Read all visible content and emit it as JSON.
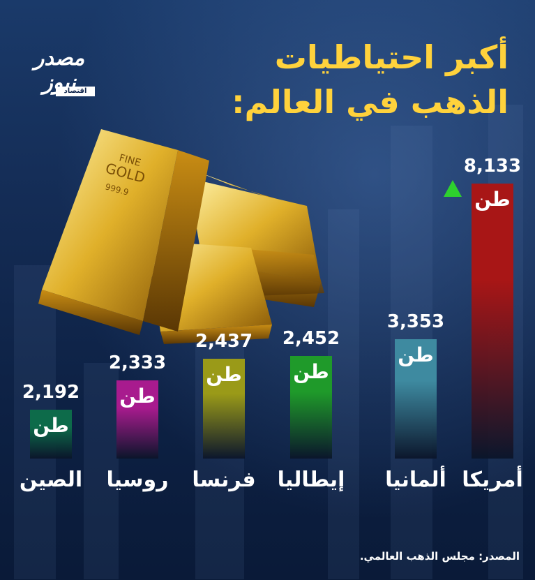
{
  "brand": {
    "logo_text": "مصدر نيوز",
    "logo_tag": "اقتصاد"
  },
  "chart_data": {
    "type": "bar",
    "title_lines": [
      "أكبر احتياطيات",
      "الذهب في العالم:"
    ],
    "categories": [
      "الصين",
      "روسيا",
      "فرنسا",
      "إيطاليا",
      "ألمانيا",
      "أمريكا"
    ],
    "values": [
      2192,
      2333,
      2437,
      2452,
      3353,
      8133
    ],
    "value_labels": [
      "2,192",
      "2,333",
      "2,437",
      "2,452",
      "3,353",
      "8,133"
    ],
    "unit": "طن",
    "colors": [
      "#0d6b4a",
      "#a81b8e",
      "#9a9a18",
      "#1f9a2a",
      "#3e8aa0",
      "#a81616"
    ],
    "source": "المصدر: مجلس الذهب العالمي."
  }
}
